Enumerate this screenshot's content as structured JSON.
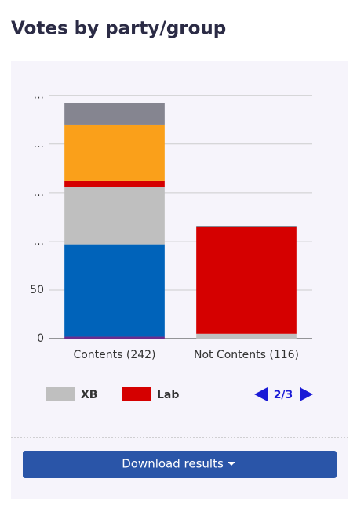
{
  "chart_data": {
    "type": "stacked_bar",
    "title": "Votes by party/group",
    "categories": [
      "Contents (242)",
      "Not Contents (116)"
    ],
    "series": [
      {
        "color": "#6b2d8f",
        "values": [
          2,
          0
        ]
      },
      {
        "color": "#0063ba",
        "values": [
          95,
          0
        ]
      },
      {
        "name": "XB",
        "color": "#bfbfbf",
        "values": [
          59,
          5
        ]
      },
      {
        "name": "Lab",
        "color": "#d50000",
        "values": [
          6,
          110
        ]
      },
      {
        "color": "#faa01a",
        "values": [
          58,
          0
        ]
      },
      {
        "color": "#858590",
        "values": [
          22,
          1
        ]
      }
    ],
    "ylim": [
      0,
      253
    ],
    "yticks": [
      0,
      50,
      {
        "value": 100,
        "label": "..."
      },
      {
        "value": 150,
        "label": "..."
      },
      {
        "value": 200,
        "label": "..."
      },
      {
        "value": 250,
        "label": "..."
      }
    ],
    "grid": true,
    "legend_page": "2/3"
  },
  "download_button": "Download results"
}
